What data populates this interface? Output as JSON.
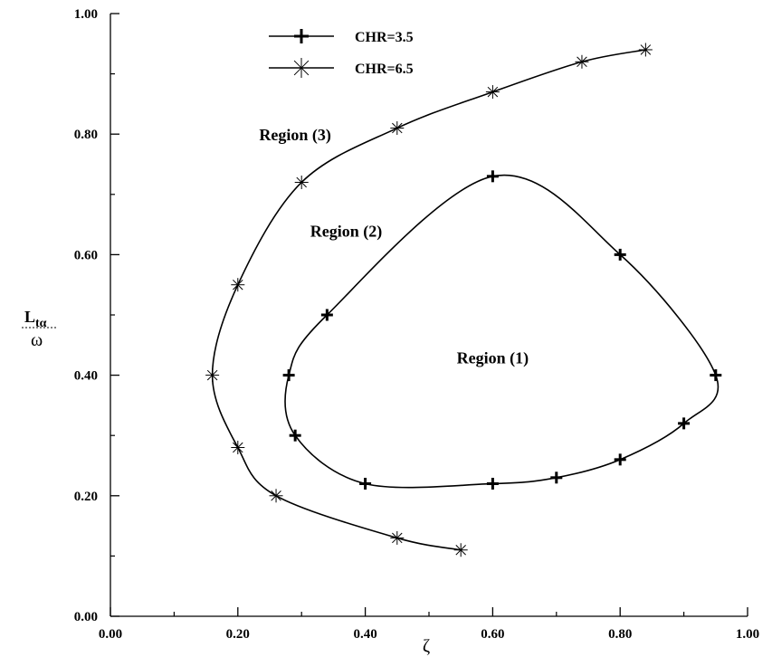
{
  "chart_data": {
    "type": "line",
    "xlabel": "ζ",
    "ylabel": {
      "numerator_main": "L",
      "numerator_sub": "tα",
      "denominator": "ω"
    },
    "xlim": [
      0,
      1
    ],
    "ylim": [
      0,
      1
    ],
    "x_ticks": [
      "0.00",
      "0.20",
      "0.40",
      "0.60",
      "0.80",
      "1.00"
    ],
    "y_ticks": [
      "0.00",
      "0.20",
      "0.40",
      "0.60",
      "0.80",
      "1.00"
    ],
    "grid": false,
    "legend_position": "top-center",
    "series": [
      {
        "name": "CHR=3.5",
        "marker": "plus",
        "closed": true,
        "points": [
          [
            0.6,
            0.73
          ],
          [
            0.8,
            0.6
          ],
          [
            0.95,
            0.4
          ],
          [
            0.9,
            0.32
          ],
          [
            0.8,
            0.26
          ],
          [
            0.7,
            0.23
          ],
          [
            0.6,
            0.22
          ],
          [
            0.4,
            0.22
          ],
          [
            0.29,
            0.3
          ],
          [
            0.28,
            0.4
          ],
          [
            0.34,
            0.5
          ]
        ]
      },
      {
        "name": "CHR=6.5",
        "marker": "asterisk",
        "closed": false,
        "points": [
          [
            0.84,
            0.94
          ],
          [
            0.74,
            0.92
          ],
          [
            0.6,
            0.87
          ],
          [
            0.45,
            0.81
          ],
          [
            0.3,
            0.72
          ],
          [
            0.2,
            0.55
          ],
          [
            0.16,
            0.4
          ],
          [
            0.2,
            0.28
          ],
          [
            0.26,
            0.2
          ],
          [
            0.45,
            0.13
          ],
          [
            0.55,
            0.11
          ]
        ]
      }
    ],
    "annotations": [
      {
        "text": "Region (1)",
        "x": 0.6,
        "y": 0.42
      },
      {
        "text": "Region (2)",
        "x": 0.37,
        "y": 0.63
      },
      {
        "text": "Region (3)",
        "x": 0.29,
        "y": 0.79
      }
    ]
  }
}
